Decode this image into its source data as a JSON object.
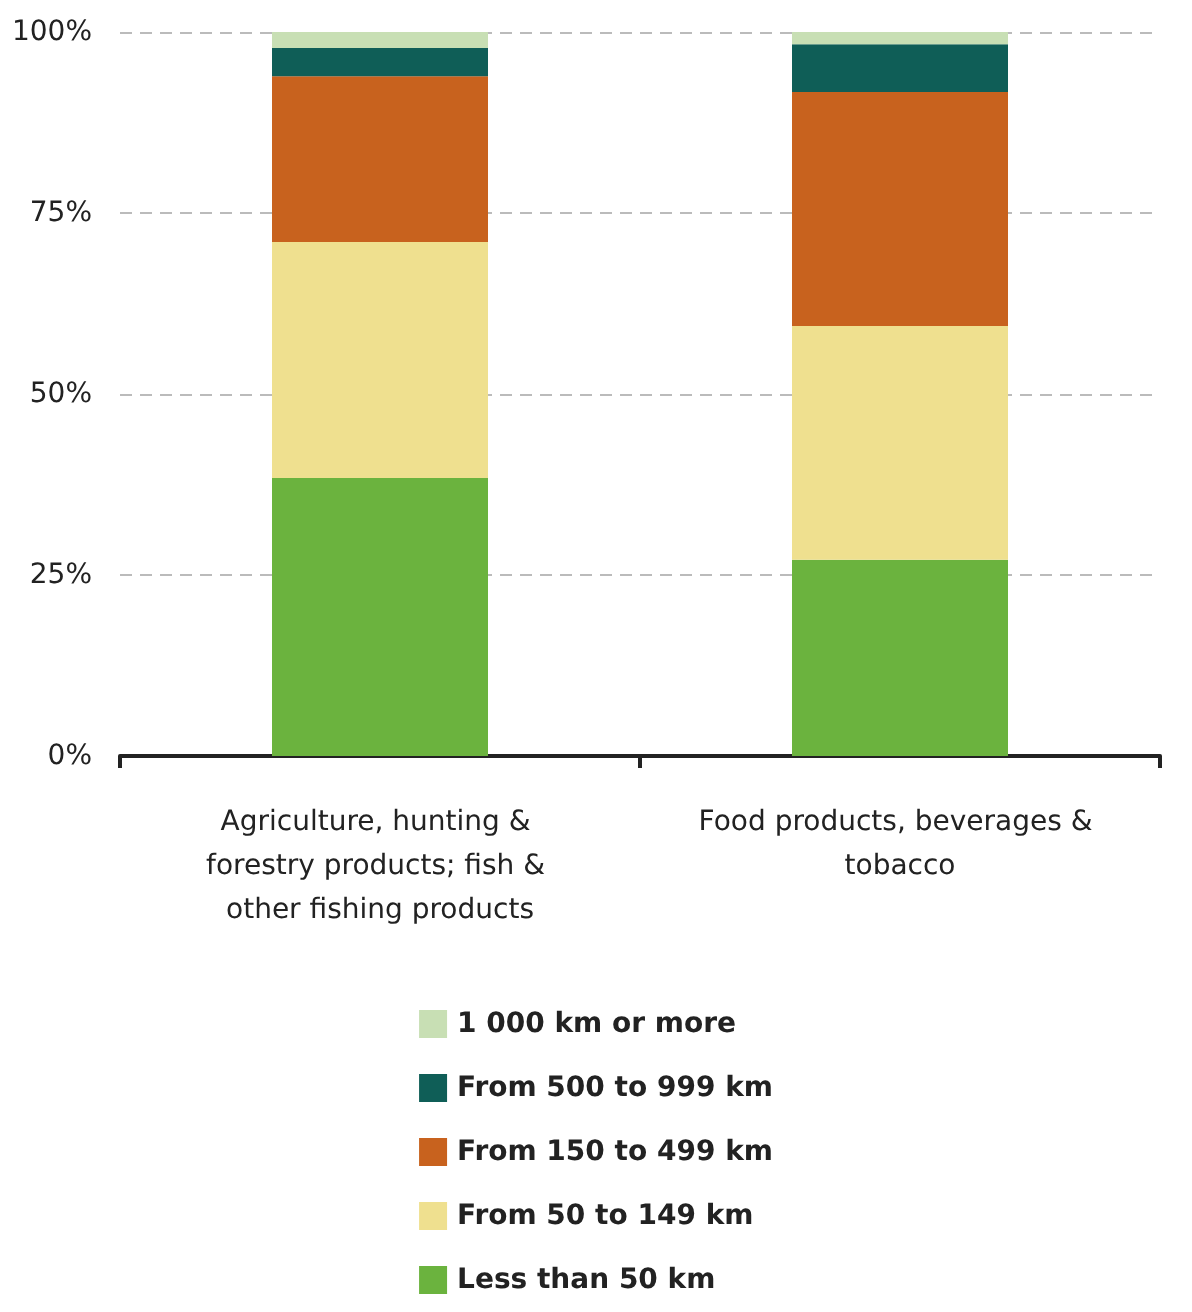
{
  "chart_data": {
    "type": "bar",
    "stacked": true,
    "categories": [
      "Agriculture, hunting & forestry products; fish & other fishing products",
      "Food products, beverages & tobacco"
    ],
    "series": [
      {
        "name": "Less than 50 km",
        "color": "#6bb33e",
        "values": [
          38.4,
          27.1
        ]
      },
      {
        "name": "From 50 to 149 km",
        "color": "#efe08f",
        "values": [
          32.6,
          32.3
        ]
      },
      {
        "name": "From 150 to 499 km",
        "color": "#c8621e",
        "values": [
          22.9,
          32.3
        ]
      },
      {
        "name": "From 500 to 999 km",
        "color": "#0f5e57",
        "values": [
          3.9,
          6.6
        ]
      },
      {
        "name": "1 000 km or more",
        "color": "#c8dfb4",
        "values": [
          2.2,
          1.7
        ]
      }
    ],
    "ylim": [
      0,
      100
    ],
    "yticks": [
      {
        "value": 0,
        "label": "0%"
      },
      {
        "value": 25,
        "label": "25%"
      },
      {
        "value": 50,
        "label": "50%"
      },
      {
        "value": 75,
        "label": "75%"
      },
      {
        "value": 100,
        "label": "100%"
      }
    ],
    "grid": "y",
    "legend": "bottom"
  }
}
